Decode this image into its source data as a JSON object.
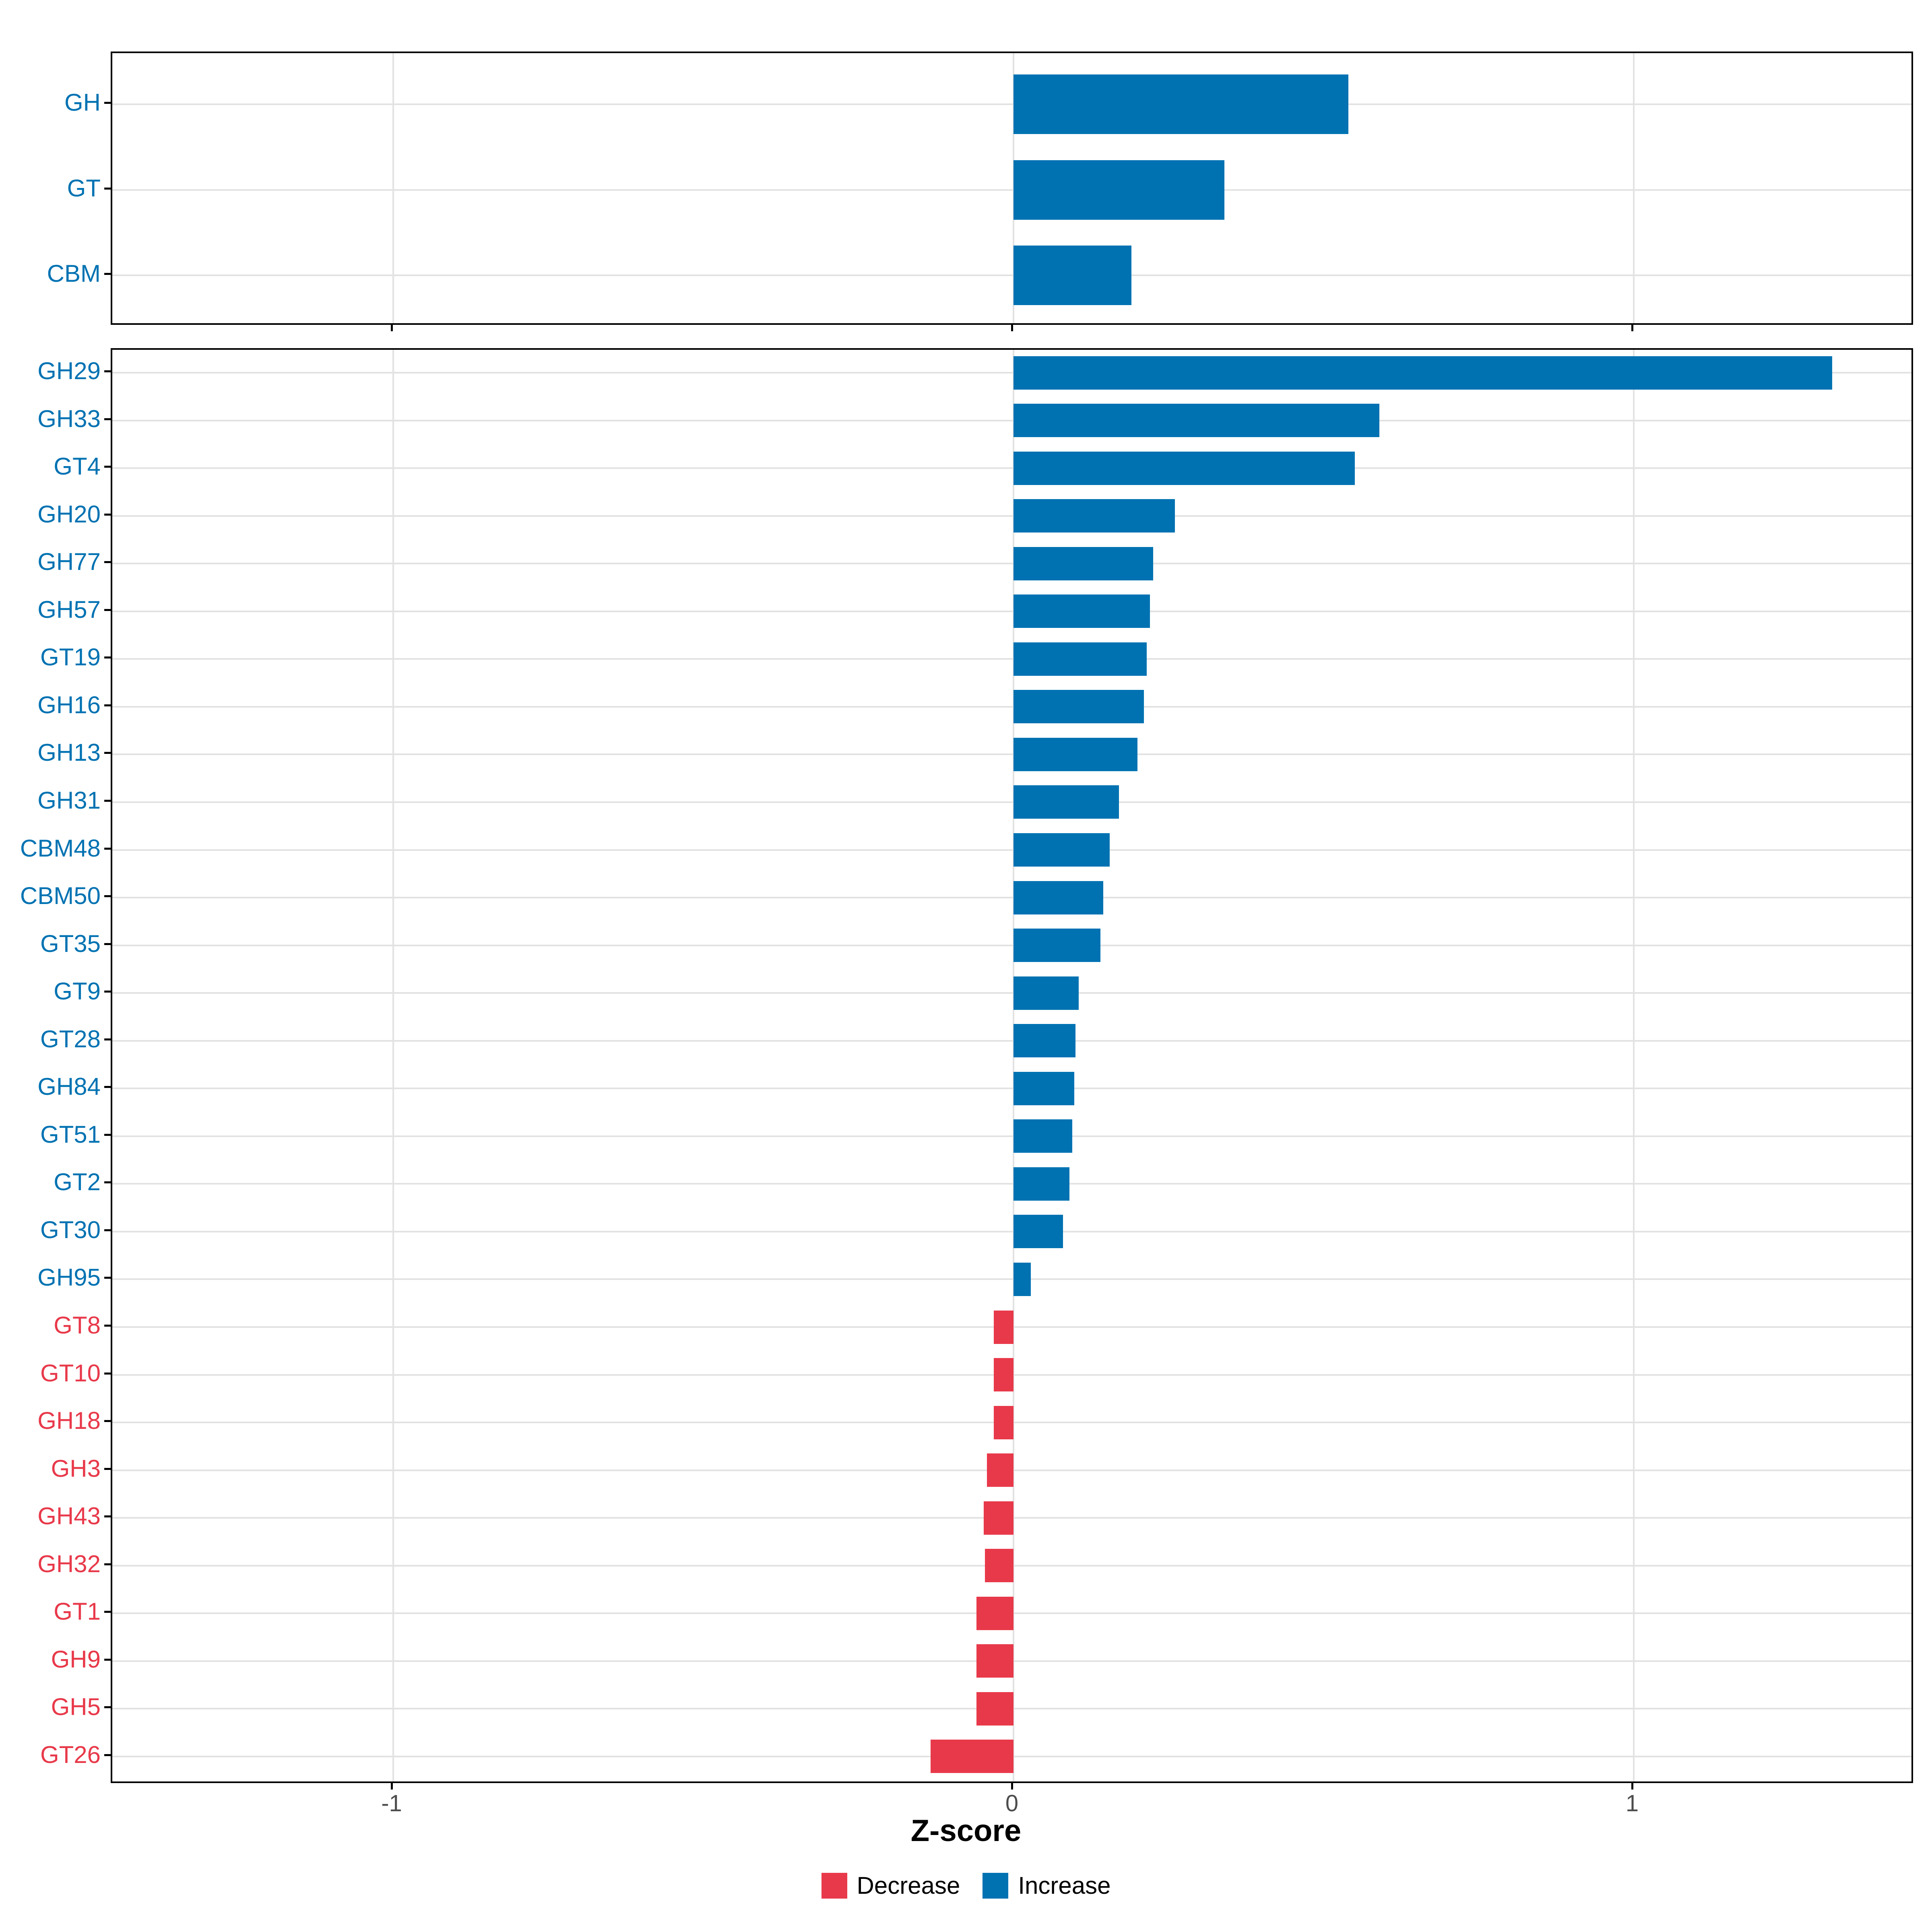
{
  "colors": {
    "increase": "#0072B2",
    "decrease": "#E8394A",
    "grid": "#E2E2E2",
    "axis_text": "#4D4D4D",
    "border": "#000000"
  },
  "axis": {
    "label": "Z-score",
    "ticks": [
      -1,
      0,
      1
    ],
    "tick_labels": [
      "-1",
      "0",
      "1"
    ],
    "range": [
      -1.45,
      1.45
    ]
  },
  "legend": {
    "items": [
      {
        "label": "Decrease",
        "color_key": "decrease"
      },
      {
        "label": "Increase",
        "color_key": "increase"
      }
    ]
  },
  "chart_data": [
    {
      "type": "bar",
      "orientation": "horizontal",
      "panel": "top",
      "title": "",
      "xlabel": "Z-score",
      "ylabel": "",
      "xlim": [
        -1.45,
        1.45
      ],
      "grid": true,
      "categories": [
        "GH",
        "GT",
        "CBM"
      ],
      "values": [
        0.54,
        0.34,
        0.19
      ],
      "groups": [
        "Increase",
        "Increase",
        "Increase"
      ]
    },
    {
      "type": "bar",
      "orientation": "horizontal",
      "panel": "bottom",
      "title": "",
      "xlabel": "Z-score",
      "ylabel": "",
      "xlim": [
        -1.45,
        1.45
      ],
      "grid": true,
      "categories": [
        "GH29",
        "GH33",
        "GT4",
        "GH20",
        "GH77",
        "GH57",
        "GT19",
        "GH16",
        "GH13",
        "GH31",
        "CBM48",
        "CBM50",
        "GT35",
        "GT9",
        "GT28",
        "GH84",
        "GT51",
        "GT2",
        "GT30",
        "GH95",
        "GT8",
        "GT10",
        "GH18",
        "GH3",
        "GH43",
        "GH32",
        "GT1",
        "GH9",
        "GH5",
        "GT26"
      ],
      "values": [
        1.32,
        0.59,
        0.55,
        0.26,
        0.225,
        0.22,
        0.215,
        0.21,
        0.2,
        0.17,
        0.155,
        0.145,
        0.14,
        0.105,
        0.1,
        0.098,
        0.095,
        0.09,
        0.08,
        0.028,
        -0.032,
        -0.032,
        -0.032,
        -0.043,
        -0.048,
        -0.046,
        -0.06,
        -0.06,
        -0.06,
        -0.134
      ],
      "groups": [
        "Increase",
        "Increase",
        "Increase",
        "Increase",
        "Increase",
        "Increase",
        "Increase",
        "Increase",
        "Increase",
        "Increase",
        "Increase",
        "Increase",
        "Increase",
        "Increase",
        "Increase",
        "Increase",
        "Increase",
        "Increase",
        "Increase",
        "Increase",
        "Decrease",
        "Decrease",
        "Decrease",
        "Decrease",
        "Decrease",
        "Decrease",
        "Decrease",
        "Decrease",
        "Decrease",
        "Decrease"
      ]
    }
  ]
}
